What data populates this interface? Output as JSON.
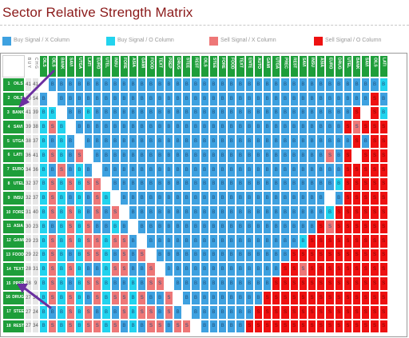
{
  "title": "Sector Relative Strength Matrix",
  "legend": [
    {
      "label": "Buy Signal / X Column",
      "color": "#3ea1e0",
      "key": "BX"
    },
    {
      "label": "Buy Signal / O Column",
      "color": "#22d3ee",
      "key": "BO"
    },
    {
      "label": "Sell Signal / X Column",
      "color": "#ee7777",
      "key": "SX"
    },
    {
      "label": "Sell Signal / O Column",
      "color": "#ee1111",
      "key": "SO"
    }
  ],
  "colors": {
    "BX": "#3ea1e0",
    "BO": "#22d3ee",
    "SX": "#ee7777",
    "SO": "#ee1111",
    "D": "#ffffff",
    "header": "#1e9e3a",
    "title": "#8b1a1a"
  },
  "header": {
    "count_label": "B U Y",
    "change_label": "C H G",
    "columns": [
      "OILS",
      "OILS",
      "BANK",
      "SAVI",
      "UTGA",
      "LATI",
      "EURO",
      "UTEL",
      "INSU",
      "FORE",
      "ASIA",
      "GAMI",
      "FOOD",
      "TEXT",
      "PREP",
      "DRUG",
      "STEE",
      "REST",
      "OILS",
      "STEE",
      "FORE",
      "FOOD",
      "TEXT",
      "ENTE",
      "AUTO",
      "GAMI",
      "UTGA",
      "PREC",
      "REST",
      "SAVI",
      "INSU",
      "ASIA",
      "EURO",
      "DRUG",
      "UTEL",
      "BANK",
      "SAVI",
      "OILS",
      "LATI"
    ]
  },
  "rows": [
    {
      "n": "1",
      "label": "OILS",
      "count": "41",
      "chg": "41"
    },
    {
      "n": "2",
      "label": "OILS",
      "count": "40",
      "chg": "54"
    },
    {
      "n": "3",
      "label": "BANK",
      "count": "41",
      "chg": "39"
    },
    {
      "n": "4",
      "label": "SAVI",
      "count": "39",
      "chg": "38"
    },
    {
      "n": "5",
      "label": "UTGA",
      "count": "38",
      "chg": "37"
    },
    {
      "n": "6",
      "label": "LATI",
      "count": "36",
      "chg": "41"
    },
    {
      "n": "7",
      "label": "EURO",
      "count": "34",
      "chg": "36"
    },
    {
      "n": "8",
      "label": "UTEL",
      "count": "32",
      "chg": "37"
    },
    {
      "n": "9",
      "label": "INSU",
      "count": "32",
      "chg": "37"
    },
    {
      "n": "10",
      "label": "FORE",
      "count": "31",
      "chg": "40"
    },
    {
      "n": "11",
      "label": "ASIA",
      "count": "30",
      "chg": "23"
    },
    {
      "n": "12",
      "label": "GAMI",
      "count": "29",
      "chg": "23"
    },
    {
      "n": "13",
      "label": "FOOD",
      "count": "29",
      "chg": "22"
    },
    {
      "n": "14",
      "label": "TEXT",
      "count": "28",
      "chg": "31"
    },
    {
      "n": "15",
      "label": "PREP",
      "count": "28",
      "chg": "9"
    },
    {
      "n": "16",
      "label": "DRUG",
      "count": "27",
      "chg": "34"
    },
    {
      "n": "17",
      "label": "STEE",
      "count": "27",
      "chg": "24"
    },
    {
      "n": "18",
      "label": "REST",
      "count": "27",
      "chg": "34"
    }
  ],
  "matrix": [
    "D BX BX BX BX BX BX BX BX BX BX BX BX BX BX BX BX BX BX BX BX BX BX BX BX BX BX BX BX BX BX BX BX BX BX BX BX BX BO",
    "BX D BX BX BX BX BX BX BX BX BX BX BX BX BX BX BX BX BX BX BX BX BX BX BX BX BX BX BX BX BX BX BX BX BX BX BX SO BX",
    "BO BO D BX BX BO BX BX BX BX BX BX BX BX BX BX BX BX BX BX BX BX BX BX BX BX BX BX BX BX BX BX BX BX BX SO D SO BO",
    "BO SX BO D BX BX BX BX BX BX BX BX BX BX BX BX BX BX BX BX BX BX BX BX BX BX BX BX BX BX BX BX BX BX SO SX SO SO SO",
    "BO BX BO BX D BX BX BX BX BX BX BX BX BX BX BX BX BX BX BX BX BX BX BX BX BX BX BX BX BX BX BX BX BX BX SO BX SO SO",
    "BO SX BO BX SX D BX BX BX BX BX BX BX BX BX BX BX BX BX BX BX BX BX BX BX BX BX BX BX BX BX BX SX BX SO D SO SO SO",
    "BO BX SX BX BO BX D BX BX BX BX BX BX BX BX BX BX BX BX BX BX BX BX BX BX BX BX BX BX BX BX BX BX BX SO SO SO SO SO",
    "BO SX BO SX BO SX SX D BX BX BX BX BX BX BX BX BX BX BX BX BX BX BX BX BX BX BX BX BX BX BX BX BX BO SO SO SO SO SO",
    "BO SX BO BX BO BX SX BO D BX BX BX BX BX BX BX BX BX BX BX BX BX BX BX BX BX BX BX BX BX BX BX D BX SO SO SO SO SO",
    "BO SX BO SX BO BX SX BX SX D BX BX BX BX BX BX BX BX BX BX BX BX BX BX BX BX BX BX BX BX BX BX BO SO SO SO SO SO SO",
    "BO BX BO SX BO SX BX BX BO BX D BX BX BX BX BX BX BX BX BX BX BX BX BX BX BX BX BX BX BX BX SO SX SO SO SO SO SO SO",
    "BO SX BO SX BO SX SX BO SX SX BX D BX BX BX BX BX BX BX BX BX BX BX BX BX BX BX BX BX BO SO SO SO SO SO SO SO SO SO",
    "BO SX BO BX BO SX SX BO BX SX BX SX D BX BX BX BX BX BX BX BX BX BX BX BX BX BX BX SO SO SO SO SO SO SO SO SO SO SO",
    "BO SX BO SX BO BX BX BO SX SX BX BX SX D BX BX BX BX BX BX BX BX BX BX BX BX BX SO SO SX SO SO SO SO SO SO SO SO SO",
    "BO SX BO BX BO SX SX BO BX BX BO BX SX SX D BX BX BX BX BX BX BX BX BX BX BX SO SO SO SO SO SO SO SO SO SO SO SO SO",
    "BO SX BO SX BO BX SX BO SX SX BO SX BX BX SX D BX BX BX BX BX BX BX BX BX SO SO SO SO SO SO SO SO SO SO SO SO SO SO",
    "BO BX BO SX BO SX BX BO BX SX BO SX SX BX SX BX D BX BX BX BX BX BX BX SO SO SO SO SO SO SO SO SO SO SO SO SO SO SO",
    "BO SX BO SX BO SX SX BO SX BX BO BX SX SX BX SX SX D BX BX BX BX BX SO SO SO SO SO SO SO SO SO SO SO SO SO SO SO SO"
  ]
}
